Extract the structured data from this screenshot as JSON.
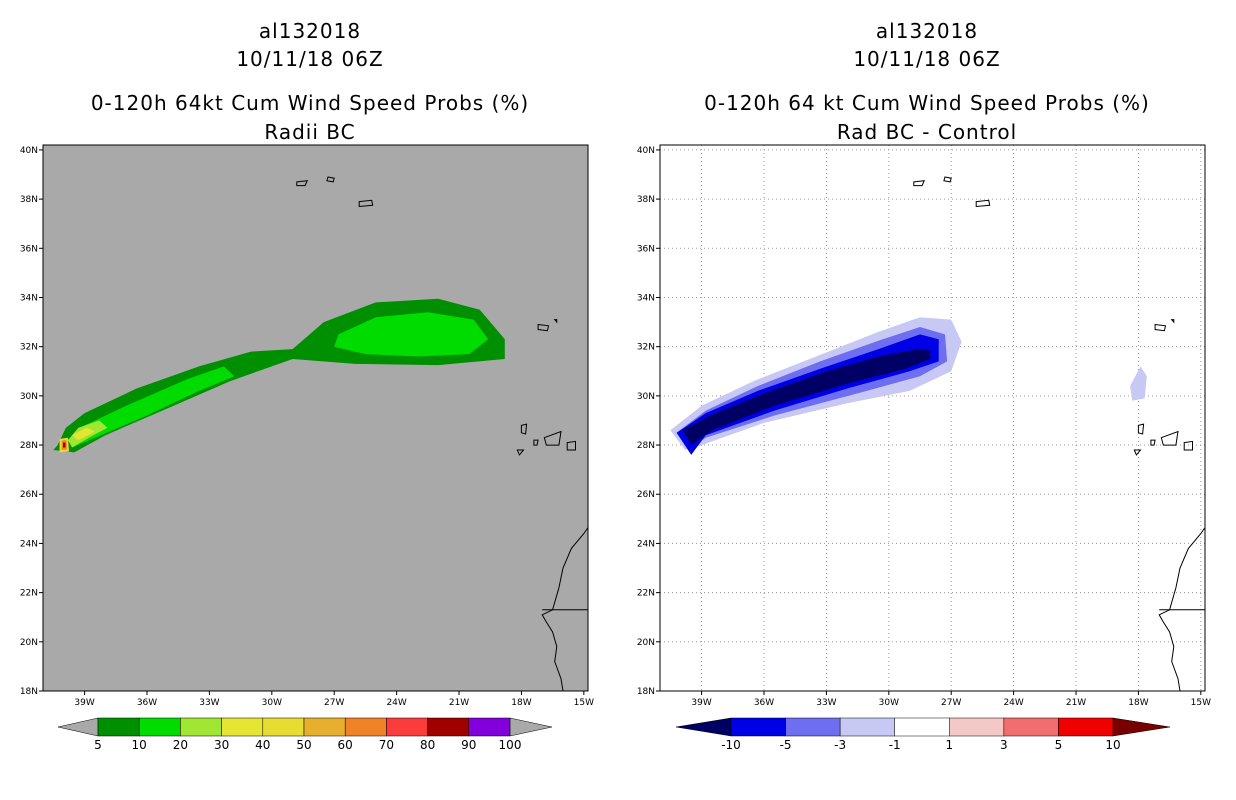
{
  "chart_data": [
    {
      "type": "heatmap",
      "storm_id": "al132018",
      "datetime": "10/11/18 06Z",
      "title": "0-120h 64kt Cum Wind Speed Probs (%)",
      "subtitle": "Radii BC",
      "x_ticks": [
        "39W",
        "36W",
        "33W",
        "30W",
        "27W",
        "24W",
        "21W",
        "18W",
        "15W"
      ],
      "y_ticks": [
        "40N",
        "38N",
        "36N",
        "34N",
        "32N",
        "30N",
        "28N",
        "26N",
        "24N",
        "22N",
        "20N",
        "18N"
      ],
      "xlim": [
        -41,
        -14.8
      ],
      "ylim": [
        18,
        40.2
      ],
      "grid": false,
      "background": "#a9a9a9",
      "colorbar": {
        "labels": [
          "5",
          "10",
          "20",
          "30",
          "40",
          "50",
          "60",
          "70",
          "80",
          "90",
          "100"
        ],
        "colors": [
          "#008f00",
          "#00dc00",
          "#a0e632",
          "#e6e632",
          "#e6dc32",
          "#e6af2d",
          "#f08228",
          "#fa3c3c",
          "#a00000",
          "#8200dc"
        ],
        "end_color": "#a9a9a9"
      },
      "contours": [
        {
          "level": 5,
          "color": "#008f00",
          "points": [
            [
              -40.3,
              28.0
            ],
            [
              -39.9,
              28.7
            ],
            [
              -39.0,
              29.3
            ],
            [
              -36.5,
              30.3
            ],
            [
              -33.5,
              31.2
            ],
            [
              -31.0,
              31.8
            ],
            [
              -29.0,
              31.9
            ],
            [
              -27.5,
              33.0
            ],
            [
              -25.0,
              33.8
            ],
            [
              -22.0,
              33.95
            ],
            [
              -20.0,
              33.5
            ],
            [
              -18.8,
              32.3
            ],
            [
              -18.8,
              31.5
            ],
            [
              -22.0,
              31.25
            ],
            [
              -26.0,
              31.3
            ],
            [
              -29.0,
              31.5
            ],
            [
              -32.0,
              30.6
            ],
            [
              -35.0,
              29.5
            ],
            [
              -38.0,
              28.4
            ],
            [
              -39.5,
              27.7
            ],
            [
              -40.5,
              27.8
            ]
          ]
        },
        {
          "level": 10,
          "color": "#00dc00",
          "points": [
            [
              -39.8,
              28.2
            ],
            [
              -39.0,
              28.8
            ],
            [
              -37.0,
              29.6
            ],
            [
              -34.0,
              30.7
            ],
            [
              -32.3,
              31.2
            ],
            [
              -31.8,
              30.8
            ],
            [
              -33.5,
              30.2
            ],
            [
              -36.0,
              29.2
            ],
            [
              -38.5,
              28.3
            ],
            [
              -39.6,
              27.9
            ]
          ]
        },
        {
          "level": 10,
          "color": "#00dc00",
          "points": [
            [
              -26.8,
              32.5
            ],
            [
              -25.0,
              33.2
            ],
            [
              -22.5,
              33.4
            ],
            [
              -20.3,
              33.1
            ],
            [
              -19.6,
              32.3
            ],
            [
              -20.5,
              31.7
            ],
            [
              -23.0,
              31.6
            ],
            [
              -25.5,
              31.7
            ],
            [
              -27.0,
              32.0
            ]
          ]
        },
        {
          "level": 20,
          "color": "#a0e632",
          "points": [
            [
              -39.8,
              28.2
            ],
            [
              -39.3,
              28.7
            ],
            [
              -38.3,
              29.0
            ],
            [
              -37.9,
              28.7
            ],
            [
              -38.8,
              28.3
            ],
            [
              -39.6,
              27.9
            ]
          ]
        },
        {
          "level": 30,
          "color": "#e6e632",
          "points": [
            [
              -39.6,
              28.4
            ],
            [
              -38.9,
              28.7
            ],
            [
              -38.5,
              28.55
            ],
            [
              -39.3,
              28.2
            ]
          ]
        },
        {
          "level": 40,
          "color": "#e6dc32",
          "points": [
            [
              -40.2,
              28.25
            ],
            [
              -39.8,
              28.3
            ],
            [
              -39.75,
              27.75
            ],
            [
              -40.2,
              27.7
            ]
          ]
        },
        {
          "level": 60,
          "color": "#f08228",
          "points": [
            [
              -40.1,
              28.18
            ],
            [
              -39.87,
              28.2
            ],
            [
              -39.85,
              27.82
            ],
            [
              -40.1,
              27.8
            ]
          ]
        },
        {
          "level": 80,
          "color": "#a00000",
          "points": [
            [
              -40.04,
              28.1
            ],
            [
              -39.92,
              28.1
            ],
            [
              -39.92,
              27.9
            ],
            [
              -40.04,
              27.9
            ]
          ]
        }
      ]
    },
    {
      "type": "heatmap",
      "storm_id": "al132018",
      "datetime": "10/11/18 06Z",
      "title": "0-120h 64 kt Cum Wind Speed Probs (%)",
      "subtitle": "Rad BC - Control",
      "x_ticks": [
        "39W",
        "36W",
        "33W",
        "30W",
        "27W",
        "24W",
        "21W",
        "18W",
        "15W"
      ],
      "y_ticks": [
        "40N",
        "38N",
        "36N",
        "34N",
        "32N",
        "30N",
        "28N",
        "26N",
        "24N",
        "22N",
        "20N",
        "18N"
      ],
      "xlim": [
        -41,
        -14.8
      ],
      "ylim": [
        18,
        40.2
      ],
      "grid": true,
      "background": "#ffffff",
      "colorbar": {
        "labels": [
          "-10",
          "-5",
          "-3",
          "-1",
          "1",
          "3",
          "5",
          "10"
        ],
        "colors": [
          "#0000e6",
          "#6e6ef0",
          "#c8c8f5",
          "#ffffff",
          "#f5c8c8",
          "#f06e6e",
          "#f00000"
        ],
        "low_end_color": "#000064",
        "high_end_color": "#780000"
      },
      "contours": [
        {
          "level": -1,
          "color": "#c8c8f5",
          "points": [
            [
              -40.5,
              28.6
            ],
            [
              -39.0,
              29.6
            ],
            [
              -36.5,
              30.6
            ],
            [
              -33.5,
              31.6
            ],
            [
              -30.5,
              32.6
            ],
            [
              -28.5,
              33.2
            ],
            [
              -27.0,
              33.1
            ],
            [
              -26.5,
              32.2
            ],
            [
              -27.0,
              31.0
            ],
            [
              -29.0,
              30.2
            ],
            [
              -32.0,
              29.7
            ],
            [
              -36.0,
              28.9
            ],
            [
              -39.0,
              28.0
            ],
            [
              -39.8,
              27.8
            ]
          ]
        },
        {
          "level": -3,
          "color": "#6e6ef0",
          "points": [
            [
              -40.2,
              28.5
            ],
            [
              -38.8,
              29.4
            ],
            [
              -36.3,
              30.4
            ],
            [
              -33.3,
              31.4
            ],
            [
              -30.3,
              32.3
            ],
            [
              -28.5,
              32.8
            ],
            [
              -27.3,
              32.5
            ],
            [
              -27.2,
              31.4
            ],
            [
              -28.5,
              30.8
            ],
            [
              -31.5,
              30.1
            ],
            [
              -35.5,
              29.2
            ],
            [
              -38.8,
              28.3
            ],
            [
              -39.5,
              27.9
            ]
          ]
        },
        {
          "level": -5,
          "color": "#0000e6",
          "points": [
            [
              -40.2,
              28.5
            ],
            [
              -38.8,
              29.3
            ],
            [
              -36.3,
              30.2
            ],
            [
              -33.3,
              31.1
            ],
            [
              -30.5,
              31.9
            ],
            [
              -28.5,
              32.5
            ],
            [
              -27.6,
              32.3
            ],
            [
              -27.6,
              31.4
            ],
            [
              -29.0,
              31.0
            ],
            [
              -32.0,
              30.3
            ],
            [
              -35.5,
              29.4
            ],
            [
              -38.8,
              28.4
            ],
            [
              -39.5,
              27.6
            ]
          ]
        },
        {
          "level": -10,
          "color": "#000064",
          "points": [
            [
              -39.9,
              28.6
            ],
            [
              -38.6,
              29.2
            ],
            [
              -36.0,
              30.1
            ],
            [
              -33.0,
              31.0
            ],
            [
              -30.5,
              31.6
            ],
            [
              -28.6,
              31.9
            ],
            [
              -28.0,
              31.85
            ],
            [
              -28.0,
              31.5
            ],
            [
              -29.2,
              31.1
            ],
            [
              -32.0,
              30.5
            ],
            [
              -35.5,
              29.6
            ],
            [
              -38.5,
              28.6
            ],
            [
              -39.5,
              28.0
            ]
          ]
        },
        {
          "level": -1,
          "color": "#c8c8f5",
          "points": [
            [
              -18.4,
              30.4
            ],
            [
              -17.9,
              31.2
            ],
            [
              -17.6,
              30.8
            ],
            [
              -17.7,
              29.9
            ],
            [
              -18.3,
              29.8
            ]
          ]
        }
      ]
    }
  ]
}
